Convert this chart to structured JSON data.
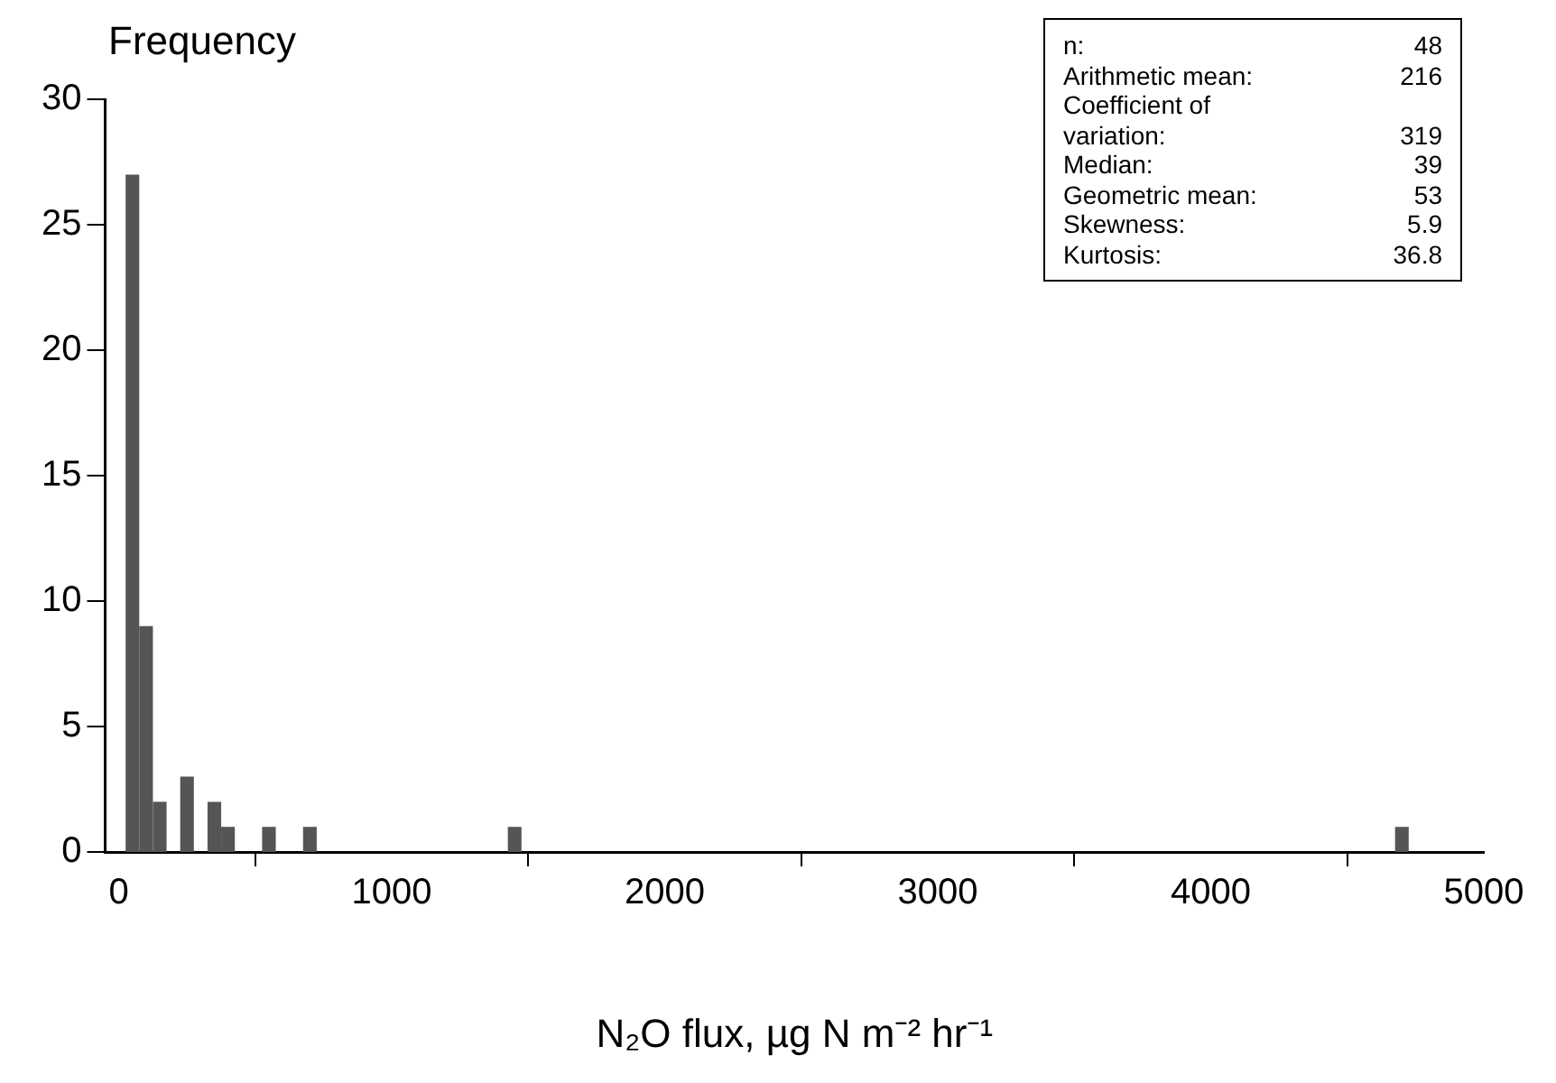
{
  "chart_data": {
    "type": "histogram",
    "ylabel": "Frequency",
    "xlabel": "N₂O flux, µg N m⁻² hr⁻¹",
    "bins": [
      25,
      75,
      125,
      175,
      225,
      275,
      325,
      375,
      425,
      475,
      525,
      575,
      625,
      675,
      725,
      775,
      825,
      875,
      925,
      975,
      1025,
      1075,
      1125,
      1175,
      1225,
      1275,
      1325,
      1375,
      1425,
      1475,
      1525,
      1575,
      1625,
      1675,
      1725,
      1775,
      1825,
      1875,
      1925,
      1975,
      2025,
      2075,
      2125,
      2175,
      2225,
      2275,
      2325,
      2375,
      2425,
      2475,
      2525,
      2575,
      2625,
      2675,
      2725,
      2775,
      2825,
      2875,
      2925,
      2975,
      3025,
      3075,
      3125,
      3175,
      3225,
      3275,
      3325,
      3375,
      3425,
      3475,
      3525,
      3575,
      3625,
      3675,
      3725,
      3775,
      3825,
      3875,
      3925,
      3975,
      4025,
      4075,
      4125,
      4175,
      4225,
      4275,
      4325,
      4375,
      4425,
      4475,
      4525,
      4575,
      4625,
      4675,
      4725
    ],
    "values": [
      27,
      9,
      2,
      0,
      3,
      0,
      2,
      1,
      0,
      0,
      1,
      0,
      0,
      1,
      0,
      0,
      0,
      0,
      0,
      0,
      0,
      0,
      0,
      0,
      0,
      0,
      0,
      0,
      1,
      0,
      0,
      0,
      0,
      0,
      0,
      0,
      0,
      0,
      0,
      0,
      0,
      0,
      0,
      0,
      0,
      0,
      0,
      0,
      0,
      0,
      0,
      0,
      0,
      0,
      0,
      0,
      0,
      0,
      0,
      0,
      0,
      0,
      0,
      0,
      0,
      0,
      0,
      0,
      0,
      0,
      0,
      0,
      0,
      0,
      0,
      0,
      0,
      0,
      0,
      0,
      0,
      0,
      0,
      0,
      0,
      0,
      0,
      0,
      0,
      0,
      0,
      0,
      0,
      1
    ],
    "color": "#555555",
    "xlim": [
      -50,
      5000
    ],
    "xticks": [
      0,
      1000,
      2000,
      3000,
      4000,
      5000
    ],
    "ylim": [
      0,
      30
    ],
    "yticks": [
      0,
      5,
      10,
      15,
      20,
      25,
      30
    ],
    "grid": false,
    "legend": false,
    "annotations": [
      "n: 48",
      "Arithmetic mean: 216",
      "Coefficient of",
      "variation: 319",
      "Median: 39",
      "Geometric mean: 53",
      "Skewness: 5.9",
      "Kurtosis: 36.8"
    ]
  }
}
